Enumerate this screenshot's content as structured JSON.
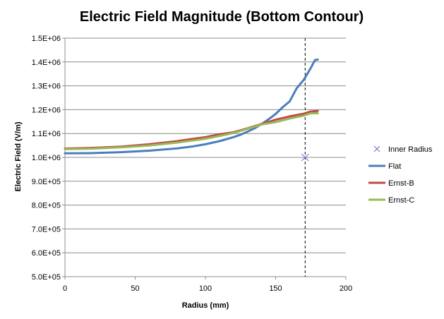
{
  "chart_data": {
    "type": "line",
    "title": "Electric Field Magnitude (Bottom Contour)",
    "xlabel": "Radius (mm)",
    "ylabel": "Electric Field (V/m)",
    "xlim": [
      0,
      200
    ],
    "ylim": [
      500000,
      1500000
    ],
    "x_ticks": [
      0,
      50,
      100,
      150,
      200
    ],
    "x_tick_labels": [
      "0",
      "50",
      "100",
      "150",
      "200"
    ],
    "y_ticks": [
      500000,
      600000,
      700000,
      800000,
      900000,
      1000000,
      1100000,
      1200000,
      1300000,
      1400000,
      1500000
    ],
    "y_tick_labels": [
      "5.0E+05",
      "6.0E+05",
      "7.0E+05",
      "8.0E+05",
      "9.0E+05",
      "1.0E+06",
      "1.1E+06",
      "1.2E+06",
      "1.3E+06",
      "1.4E+06",
      "1.5E+06"
    ],
    "grid": "horizontal",
    "legend_position": "right",
    "inner_radius_line_x": 171,
    "series": [
      {
        "name": "Inner Radius",
        "kind": "marker",
        "marker": "x",
        "color": "#7b7bd6",
        "x": [
          171
        ],
        "y": [
          1000000
        ]
      },
      {
        "name": "Flat",
        "kind": "line",
        "color": "#4a7ebb",
        "x": [
          0,
          20,
          40,
          60,
          80,
          90,
          100,
          110,
          120,
          125,
          130,
          135,
          140,
          145,
          150,
          155,
          160,
          165,
          170,
          175,
          178,
          180
        ],
        "y": [
          1017000,
          1018000,
          1022000,
          1028000,
          1038000,
          1045000,
          1055000,
          1068000,
          1085000,
          1095000,
          1108000,
          1122000,
          1140000,
          1160000,
          1182000,
          1210000,
          1235000,
          1290000,
          1325000,
          1375000,
          1408000,
          1410000
        ]
      },
      {
        "name": "Ernst-B",
        "kind": "line",
        "color": "#be4b48",
        "x": [
          0,
          20,
          40,
          60,
          80,
          90,
          100,
          110,
          120,
          130,
          140,
          150,
          160,
          170,
          175,
          180
        ],
        "y": [
          1037000,
          1040000,
          1045000,
          1055000,
          1068000,
          1077000,
          1085000,
          1097000,
          1105000,
          1122000,
          1140000,
          1158000,
          1172000,
          1183000,
          1192000,
          1195000
        ]
      },
      {
        "name": "Ernst-C",
        "kind": "line",
        "color": "#98b954",
        "x": [
          0,
          20,
          40,
          60,
          80,
          90,
          100,
          110,
          120,
          130,
          140,
          150,
          160,
          170,
          175,
          180
        ],
        "y": [
          1035000,
          1037000,
          1042000,
          1050000,
          1062000,
          1070000,
          1078000,
          1090000,
          1102000,
          1120000,
          1138000,
          1148000,
          1163000,
          1175000,
          1185000,
          1185000
        ]
      }
    ]
  }
}
